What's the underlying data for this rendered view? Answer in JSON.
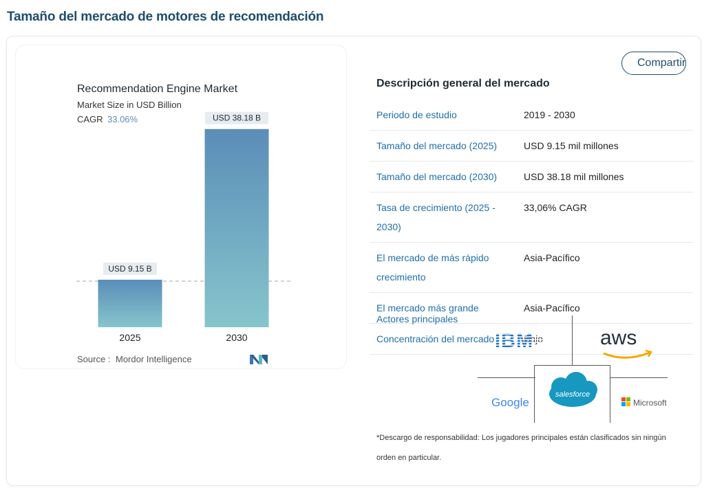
{
  "page": {
    "title": "Tamaño del mercado de motores de recomendación"
  },
  "share_button": {
    "label": "Compartir"
  },
  "chart_data": {
    "type": "bar",
    "title": "Recommendation Engine Market",
    "subtitle": "Market Size in USD Billion",
    "cagr_label": "CAGR",
    "cagr_value": "33.06%",
    "categories": [
      "2025",
      "2030"
    ],
    "values": [
      9.15,
      38.18
    ],
    "data_labels": [
      "USD 9.15 B",
      "USD 38.18 B"
    ],
    "ylim": [
      0,
      40
    ],
    "xlabel": "",
    "ylabel": "",
    "source_label": "Source :",
    "source_name": "Mordor Intelligence",
    "colors": {
      "bar_top": "#5b8db8",
      "bar_bottom": "#86c5cc",
      "ref_line": "#9aa6b2",
      "label_bg": "#e6ecef"
    }
  },
  "overview": {
    "title": "Descripción general del mercado",
    "rows": [
      {
        "label": "Periodo de estudio",
        "value": "2019 - 2030"
      },
      {
        "label": "Tamaño del mercado (2025)",
        "value": "USD 9.15 mil millones"
      },
      {
        "label": "Tamaño del mercado (2030)",
        "value": "USD 38.18 mil millones"
      },
      {
        "label": "Tasa de crecimiento (2025 - 2030)",
        "value": "33,06% CAGR"
      },
      {
        "label": "El mercado de más rápido crecimiento",
        "value": "Asia-Pacífico"
      },
      {
        "label": "El mercado más grande",
        "value": "Asia-Pacífico"
      },
      {
        "label": "Concentración del mercado",
        "value": "Bajo"
      }
    ],
    "players_label": "Actores principales",
    "players": [
      "IBM",
      "aws",
      "Google",
      "salesforce",
      "Microsoft"
    ],
    "disclaimer": "*Descargo de responsabilidad: Los jugadores principales están clasificados sin ningún orden en particular."
  },
  "colors": {
    "title": "#1f4d6b",
    "link": "#1f6fa8",
    "google_blue": "#4285F4",
    "google_red": "#EA4335",
    "google_yellow": "#FBBC05",
    "google_green": "#34A853",
    "salesforce": "#1798c1",
    "aws_orange": "#f7a600",
    "ibm_blue": "#1f70c1"
  }
}
